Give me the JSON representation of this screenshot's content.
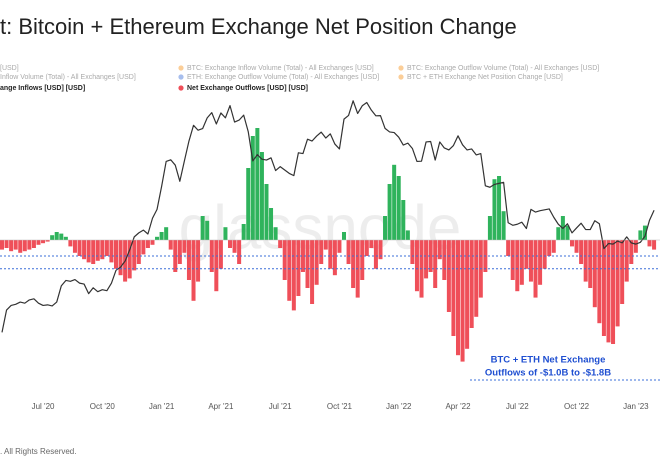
{
  "chart_data": {
    "type": "combo",
    "title": "t: Bitcoin + Ethereum Exchange Net Position Change",
    "watermark": "glassnode",
    "footer": ". All Rights Reserved.",
    "legend": [
      {
        "label": "[USD]",
        "muted": true
      },
      {
        "label": "BTC: Exchange Inflow Volume (Total) - All Exchanges [USD]",
        "color": "#f7931a",
        "muted": true
      },
      {
        "label": "BTC: Exchange Outflow Volume (Total) - All Exchanges [USD]",
        "color": "#f7931a",
        "muted": true
      },
      {
        "label": "Inflow Volume (Total) - All Exchanges [USD]",
        "muted": true
      },
      {
        "label": "ETH: Exchange Outflow Volume (Total) - All Exchanges [USD]",
        "color": "#3c6fd8",
        "muted": true
      },
      {
        "label": "BTC + ETH Exchange Net Position Change [USD]",
        "color": "#f7931a",
        "muted": true
      },
      {
        "label": "ange Inflows [USD] [USD]",
        "muted": false
      },
      {
        "label": "Net Exchange Outflows [USD] [USD]",
        "color": "#ef4f59",
        "muted": false
      }
    ],
    "annotation": {
      "lines": [
        "BTC + ETH Net Exchange",
        "Outflows of -$1.0B to -$1.8B"
      ],
      "color": "#1f4fd1"
    },
    "reference_lines": [
      -1.0,
      -1.8
    ],
    "ylim": [
      -10,
      13
    ],
    "y2lim": [
      3700,
      128000
    ],
    "y2_log": true,
    "categories": [
      null,
      null,
      null,
      null,
      null,
      null,
      null,
      null,
      null,
      "Jul '20",
      null,
      null,
      null,
      null,
      null,
      null,
      null,
      null,
      null,
      null,
      null,
      null,
      "Oct '20",
      null,
      null,
      null,
      null,
      null,
      null,
      null,
      null,
      null,
      null,
      null,
      null,
      "Jan '21",
      null,
      null,
      null,
      null,
      null,
      null,
      null,
      null,
      null,
      null,
      null,
      null,
      "Apr '21",
      null,
      null,
      null,
      null,
      null,
      null,
      null,
      null,
      null,
      null,
      null,
      null,
      "Jul '21",
      null,
      null,
      null,
      null,
      null,
      null,
      null,
      null,
      null,
      null,
      null,
      null,
      "Oct '21",
      null,
      null,
      null,
      null,
      null,
      null,
      null,
      null,
      null,
      null,
      null,
      null,
      "Jan '22",
      null,
      null,
      null,
      null,
      null,
      null,
      null,
      null,
      null,
      null,
      null,
      null,
      "Apr '22",
      null,
      null,
      null,
      null,
      null,
      null,
      null,
      null,
      null,
      null,
      null,
      null,
      "Jul '22",
      null,
      null,
      null,
      null,
      null,
      null,
      null,
      null,
      null,
      null,
      null,
      null,
      "Oct '22",
      null,
      null,
      null,
      null,
      null,
      null,
      null,
      null,
      null,
      null,
      null,
      null,
      "Jan '23",
      null,
      null,
      null,
      null
    ],
    "series": [
      {
        "type": "line",
        "axis": "y2",
        "color": "#333333",
        "values": [
          7100,
          8800,
          9200,
          9300,
          9500,
          9400,
          9700,
          9800,
          9400,
          9200,
          9250,
          9150,
          9500,
          11100,
          11700,
          11600,
          11800,
          11400,
          11300,
          10300,
          10900,
          10500,
          10700,
          10600,
          11400,
          12900,
          13300,
          14100,
          15700,
          17800,
          18500,
          19000,
          18300,
          21300,
          23200,
          28900,
          36800,
          37400,
          35500,
          30400,
          37000,
          44800,
          52100,
          49700,
          50500,
          56000,
          58900,
          52800,
          58700,
          56000,
          63000,
          53800,
          54800,
          57500,
          49000,
          37000,
          39300,
          37600,
          37300,
          38100,
          33700,
          35000,
          33900,
          32800,
          32100,
          40000,
          39700,
          45600,
          44800,
          47000,
          48800,
          46100,
          48000,
          43500,
          41500,
          55300,
          57300,
          66000,
          58400,
          62900,
          64900,
          60300,
          57100,
          57200,
          50600,
          48900,
          48600,
          46500,
          43100,
          43900,
          41700,
          36800,
          36900,
          44400,
          44600,
          37300,
          44400,
          41900,
          41100,
          42900,
          47100,
          43200,
          41100,
          41500,
          39200,
          39700,
          29100,
          28700,
          29500,
          29800,
          30100,
          20400,
          19900,
          20100,
          20500,
          19300,
          23200,
          22600,
          22900,
          23100,
          23300,
          21500,
          20100,
          19300,
          20200,
          18500,
          19400,
          20300,
          19100,
          19100,
          20800,
          20200,
          15900,
          16700,
          16600,
          17100,
          16800,
          17800,
          16800,
          16600,
          16900,
          17900,
          20900,
          23000
        ]
      },
      {
        "type": "bar",
        "color": "#2fb35c",
        "negative_color": "#ef4f59",
        "values": [
          -0.6,
          -0.5,
          -0.7,
          -0.6,
          -0.8,
          -0.7,
          -0.6,
          -0.5,
          -0.3,
          -0.2,
          -0.1,
          0.3,
          0.5,
          0.4,
          0.2,
          -0.4,
          -0.8,
          -1.0,
          -1.2,
          -1.4,
          -1.5,
          -1.3,
          -1.2,
          -1.0,
          -1.4,
          -1.8,
          -2.2,
          -2.6,
          -2.4,
          -1.9,
          -1.5,
          -0.9,
          -0.5,
          -0.3,
          0.2,
          0.5,
          0.8,
          -0.6,
          -2.0,
          -1.5,
          -0.8,
          -2.5,
          -3.8,
          -2.6,
          1.5,
          1.2,
          -2.0,
          -3.2,
          -1.8,
          0.8,
          -0.5,
          -0.8,
          -1.5,
          1.0,
          4.5,
          6.5,
          7.0,
          5.5,
          3.5,
          2.0,
          0.8,
          -0.5,
          -2.5,
          -3.8,
          -4.4,
          -3.5,
          -2.0,
          -3.0,
          -4.0,
          -2.8,
          -1.5,
          -0.6,
          -1.8,
          -2.2,
          -0.8,
          0.5,
          -1.5,
          -3.0,
          -3.6,
          -2.5,
          -1.0,
          -0.5,
          -1.8,
          -1.2,
          1.5,
          3.5,
          4.7,
          4.0,
          2.5,
          0.6,
          -1.5,
          -3.2,
          -3.6,
          -2.4,
          -2.0,
          -3.0,
          -1.2,
          -2.5,
          -4.5,
          -6.0,
          -7.2,
          -7.6,
          -6.8,
          -5.5,
          -4.8,
          -3.6,
          -2.0,
          1.5,
          3.8,
          4.0,
          1.8,
          -1.0,
          -2.5,
          -3.2,
          -2.8,
          -1.8,
          -2.6,
          -3.6,
          -2.8,
          -1.8,
          -1.0,
          -0.8,
          0.8,
          1.5,
          0.9,
          -0.4,
          -0.8,
          -1.5,
          -2.6,
          -3.0,
          -4.2,
          -5.2,
          -6.0,
          -6.4,
          -6.5,
          -5.4,
          -4.0,
          -2.6,
          -1.5,
          -0.8,
          0.6,
          0.9,
          -0.4,
          -0.6
        ]
      }
    ]
  }
}
